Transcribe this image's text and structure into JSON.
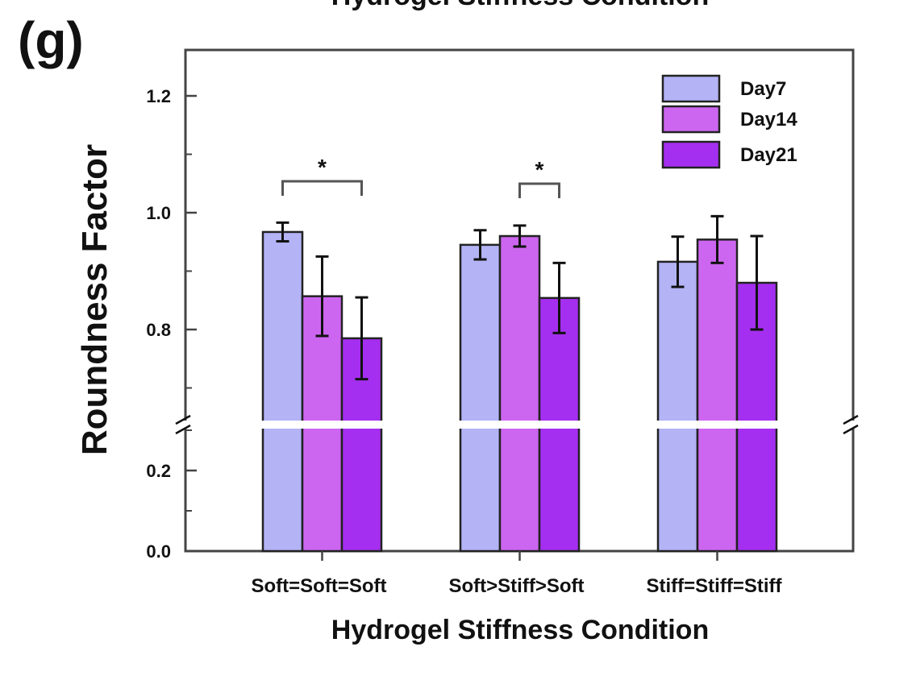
{
  "panel_label": "(g)",
  "cut_title": "Hydrogel Stiffness Condition",
  "chart_data": {
    "type": "bar",
    "xlabel": "Hydrogel Stiffness Condition",
    "ylabel": "Roundness Factor",
    "categories": [
      "Soft=Soft=Soft",
      "Soft>Stiff>Soft",
      "Stiff=Stiff=Stiff"
    ],
    "series": [
      {
        "name": "Day7",
        "color": "#b3b3f6",
        "values": [
          0.967,
          0.945,
          0.916
        ],
        "errors": [
          0.016,
          0.025,
          0.043
        ]
      },
      {
        "name": "Day14",
        "color": "#cc66f0",
        "values": [
          0.857,
          0.96,
          0.954
        ],
        "errors": [
          0.068,
          0.018,
          0.04
        ]
      },
      {
        "name": "Day21",
        "color": "#a52ff0",
        "values": [
          0.785,
          0.854,
          0.88
        ],
        "errors": [
          0.07,
          0.06,
          0.08
        ]
      }
    ],
    "y_axis": {
      "broken": true,
      "lower_range": [
        0.0,
        0.3
      ],
      "upper_range": [
        0.65,
        1.25
      ],
      "lower_ticks": [
        "0.0",
        "0.2"
      ],
      "upper_ticks": [
        "0.8",
        "1.0",
        "1.2"
      ],
      "lower_tick_values": [
        0.0,
        0.2
      ],
      "upper_tick_values": [
        0.8,
        1.0,
        1.2
      ]
    },
    "significance": [
      {
        "label": "*",
        "category_index": 0,
        "series_from": 0,
        "series_to": 2
      },
      {
        "label": "*",
        "category_index": 1,
        "series_from": 1,
        "series_to": 2
      }
    ],
    "legend": {
      "position": "top-right"
    },
    "grid": false
  }
}
